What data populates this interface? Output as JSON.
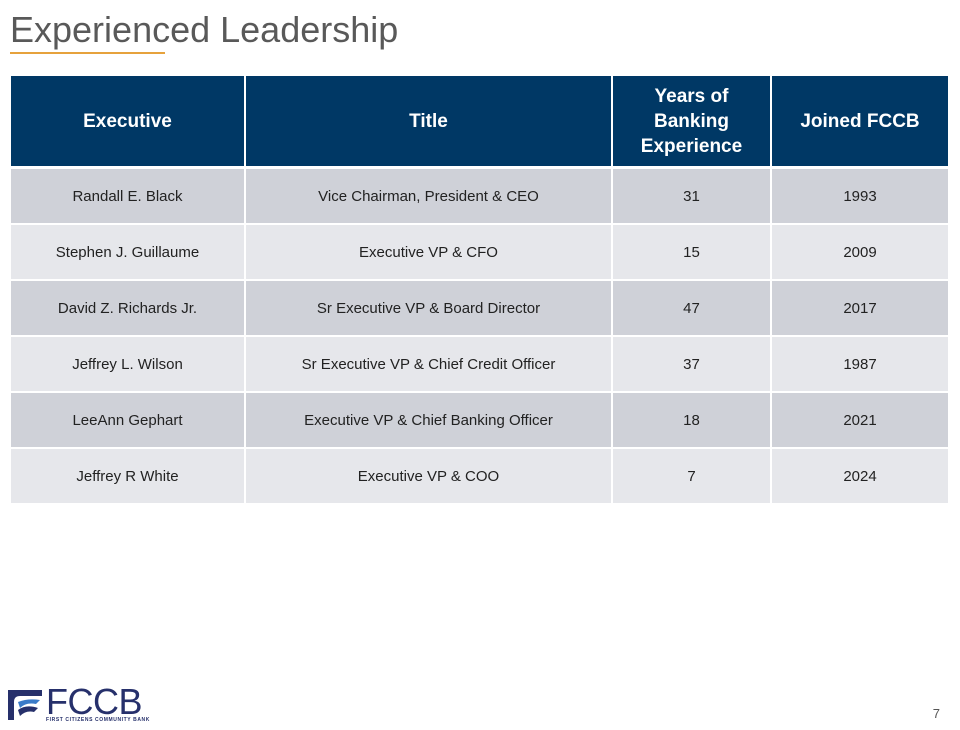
{
  "slide": {
    "title": "Experienced Leadership",
    "page_number": "7"
  },
  "table": {
    "headers": [
      "Executive",
      "Title",
      "Years of Banking Experience",
      "Joined FCCB"
    ],
    "rows": [
      [
        "Randall E. Black",
        "Vice Chairman, President & CEO",
        "31",
        "1993"
      ],
      [
        "Stephen J. Guillaume",
        "Executive VP & CFO",
        "15",
        "2009"
      ],
      [
        "David Z. Richards Jr.",
        "Sr Executive VP & Board Director",
        "47",
        "2017"
      ],
      [
        "Jeffrey L. Wilson",
        "Sr Executive VP & Chief Credit Officer",
        "37",
        "1987"
      ],
      [
        "LeeAnn Gephart",
        "Executive VP & Chief Banking Officer",
        "18",
        "2021"
      ],
      [
        "Jeffrey R White",
        "Executive VP & COO",
        "7",
        "2024"
      ]
    ]
  },
  "logo": {
    "wordmark": "FCCB",
    "subtitle": "FIRST CITIZENS COMMUNITY BANK"
  },
  "colors": {
    "header_bg": "#003865",
    "row_dark": "#cfd1d8",
    "row_light": "#e6e7eb",
    "accent_rule": "#e6a23c"
  }
}
